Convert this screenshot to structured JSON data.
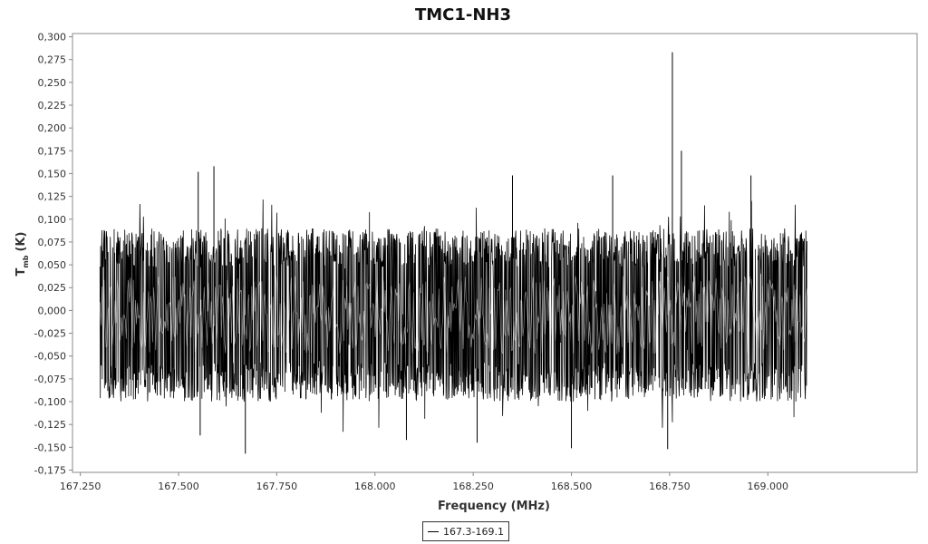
{
  "chart_data": {
    "type": "line",
    "title": "TMC1-NH3",
    "xlabel": "Frequency (MHz)",
    "ylabel_main": "T",
    "ylabel_sub": "mb",
    "ylabel_unit": "(K)",
    "xlim": [
      167.23,
      169.38
    ],
    "ylim": [
      -0.1775,
      0.3035
    ],
    "x_ticks": [
      {
        "value": 167.25,
        "label": "167.250"
      },
      {
        "value": 167.5,
        "label": "167.500"
      },
      {
        "value": 167.75,
        "label": "167.750"
      },
      {
        "value": 168.0,
        "label": "168.000"
      },
      {
        "value": 168.25,
        "label": "168.250"
      },
      {
        "value": 168.5,
        "label": "168.500"
      },
      {
        "value": 168.75,
        "label": "168.750"
      },
      {
        "value": 169.0,
        "label": "169.000"
      }
    ],
    "y_ticks": [
      {
        "value": 0.3,
        "label": "0,300"
      },
      {
        "value": 0.275,
        "label": "0,275"
      },
      {
        "value": 0.25,
        "label": "0,250"
      },
      {
        "value": 0.225,
        "label": "0,225"
      },
      {
        "value": 0.2,
        "label": "0,200"
      },
      {
        "value": 0.175,
        "label": "0,175"
      },
      {
        "value": 0.15,
        "label": "0,150"
      },
      {
        "value": 0.125,
        "label": "0,125"
      },
      {
        "value": 0.1,
        "label": "0,100"
      },
      {
        "value": 0.075,
        "label": "0,075"
      },
      {
        "value": 0.05,
        "label": "0,050"
      },
      {
        "value": 0.025,
        "label": "0,025"
      },
      {
        "value": 0.0,
        "label": "0,000"
      },
      {
        "value": -0.025,
        "label": "-0,025"
      },
      {
        "value": -0.05,
        "label": "-0,050"
      },
      {
        "value": -0.075,
        "label": "-0,075"
      },
      {
        "value": -0.1,
        "label": "-0,100"
      },
      {
        "value": -0.125,
        "label": "-0,125"
      },
      {
        "value": -0.15,
        "label": "-0,150"
      },
      {
        "value": -0.175,
        "label": "-0,175"
      }
    ],
    "grid": false,
    "legend_position": "bottom-center",
    "series": [
      {
        "name": "167.3-169.1",
        "color": "#000000",
        "x_range": [
          167.3,
          169.1
        ],
        "noise_band": [
          -0.1,
          0.09
        ],
        "spikes": [
          {
            "x": 168.757,
            "y": 0.283
          },
          {
            "x": 168.78,
            "y": 0.175
          },
          {
            "x": 167.59,
            "y": 0.158
          },
          {
            "x": 167.55,
            "y": 0.152
          },
          {
            "x": 168.35,
            "y": 0.148
          },
          {
            "x": 168.605,
            "y": 0.148
          },
          {
            "x": 168.957,
            "y": 0.148
          },
          {
            "x": 167.67,
            "y": -0.157
          },
          {
            "x": 168.745,
            "y": -0.152
          },
          {
            "x": 168.5,
            "y": -0.151
          },
          {
            "x": 168.26,
            "y": -0.145
          },
          {
            "x": 168.08,
            "y": -0.142
          },
          {
            "x": 167.555,
            "y": -0.137
          }
        ]
      }
    ]
  }
}
